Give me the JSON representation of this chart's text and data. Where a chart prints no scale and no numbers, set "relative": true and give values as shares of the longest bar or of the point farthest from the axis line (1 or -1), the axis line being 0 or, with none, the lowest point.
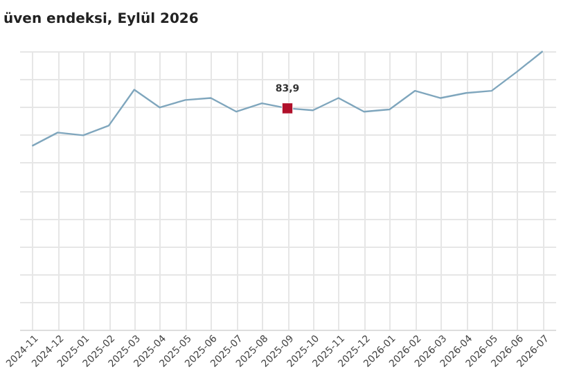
{
  "chart_data": {
    "type": "line",
    "title": "üven endeksi, Eylül 2026",
    "relative": true,
    "grid": true,
    "categories": [
      "2024-11",
      "2024-12",
      "2025-01",
      "2025-02",
      "2025-03",
      "2025-04",
      "2025-05",
      "2025-06",
      "2025-07",
      "2025-08",
      "2025-09",
      "2025-10",
      "2025-11",
      "2025-12",
      "2026-01",
      "2026-02",
      "2026-03",
      "2026-04",
      "2026-05",
      "2026-06",
      "2026-07"
    ],
    "annotations": [
      {
        "text": "83,9",
        "x": "2025-09",
        "y": 0.795
      }
    ],
    "series": [
      {
        "color": "#7fa6bd",
        "marker": "none",
        "line_style": "solid",
        "values": [
          0.66,
          0.708,
          0.698,
          0.733,
          0.862,
          0.798,
          0.825,
          0.832,
          0.783,
          0.813,
          0.795,
          0.788,
          0.832,
          0.783,
          0.791,
          0.858,
          0.832,
          0.85,
          0.858,
          0.927,
          1
        ]
      },
      {
        "type": "scatter",
        "color": "#b0102a",
        "marker": "square",
        "values": [
          null,
          null,
          null,
          null,
          null,
          null,
          null,
          null,
          null,
          null,
          0.795,
          null,
          null,
          null,
          null,
          null,
          null,
          null,
          null,
          null,
          null
        ]
      }
    ]
  }
}
